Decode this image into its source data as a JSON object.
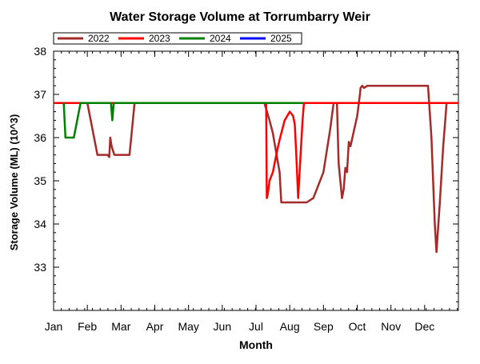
{
  "chart_data": {
    "type": "line",
    "title": "Water Storage Volume at Torrumbarry Weir",
    "xlabel": "Month",
    "ylabel": "Storage Volume (ML) (10^3)",
    "months": [
      "Jan",
      "Feb",
      "Mar",
      "Apr",
      "May",
      "Jun",
      "Jul",
      "Aug",
      "Sep",
      "Oct",
      "Nov",
      "Dec"
    ],
    "xlim": [
      0,
      12
    ],
    "ylim": [
      32,
      38
    ],
    "yticks": [
      33,
      34,
      35,
      36,
      37,
      38
    ],
    "grid": false,
    "legend_position": "top-left",
    "series": [
      {
        "name": "2022",
        "color": "#a52a2a",
        "points": [
          [
            0,
            36.8
          ],
          [
            1.0,
            36.8
          ],
          [
            1.1,
            36.4
          ],
          [
            1.3,
            35.6
          ],
          [
            1.6,
            35.6
          ],
          [
            1.65,
            35.55
          ],
          [
            1.68,
            36.0
          ],
          [
            1.72,
            35.8
          ],
          [
            1.8,
            35.6
          ],
          [
            2.25,
            35.6
          ],
          [
            2.4,
            36.8
          ],
          [
            6.25,
            36.8
          ],
          [
            6.4,
            36.4
          ],
          [
            6.5,
            36.1
          ],
          [
            6.7,
            35.2
          ],
          [
            6.75,
            34.5
          ],
          [
            7.5,
            34.5
          ],
          [
            7.7,
            34.6
          ],
          [
            8.0,
            35.2
          ],
          [
            8.2,
            36.2
          ],
          [
            8.3,
            36.8
          ],
          [
            8.4,
            36.8
          ],
          [
            8.45,
            35.4
          ],
          [
            8.55,
            34.6
          ],
          [
            8.6,
            34.8
          ],
          [
            8.65,
            35.3
          ],
          [
            8.7,
            35.2
          ],
          [
            8.75,
            35.9
          ],
          [
            8.8,
            35.8
          ],
          [
            9.0,
            36.5
          ],
          [
            9.08,
            37.0
          ],
          [
            9.1,
            37.15
          ],
          [
            9.15,
            37.2
          ],
          [
            9.2,
            37.15
          ],
          [
            9.3,
            37.2
          ],
          [
            11.0,
            37.2
          ],
          [
            11.1,
            37.2
          ],
          [
            11.2,
            36.0
          ],
          [
            11.3,
            34.0
          ],
          [
            11.35,
            33.35
          ],
          [
            11.45,
            34.5
          ],
          [
            11.55,
            35.8
          ],
          [
            11.62,
            36.5
          ],
          [
            11.65,
            36.8
          ],
          [
            12.0,
            36.8
          ]
        ]
      },
      {
        "name": "2023",
        "color": "#ff0000",
        "points": [
          [
            0,
            36.8
          ],
          [
            6.3,
            36.8
          ],
          [
            6.32,
            34.6
          ],
          [
            6.35,
            34.7
          ],
          [
            6.4,
            35.0
          ],
          [
            6.5,
            35.2
          ],
          [
            6.6,
            35.6
          ],
          [
            6.7,
            35.95
          ],
          [
            6.85,
            36.4
          ],
          [
            7.0,
            36.6
          ],
          [
            7.1,
            36.5
          ],
          [
            7.15,
            36.3
          ],
          [
            7.2,
            35.5
          ],
          [
            7.25,
            34.6
          ],
          [
            7.32,
            35.6
          ],
          [
            7.38,
            36.4
          ],
          [
            7.42,
            36.8
          ],
          [
            12.0,
            36.8
          ]
        ]
      },
      {
        "name": "2024",
        "color": "#008000",
        "points": [
          [
            0.3,
            36.8
          ],
          [
            0.35,
            36.0
          ],
          [
            0.6,
            36.0
          ],
          [
            0.8,
            36.8
          ],
          [
            1.7,
            36.8
          ],
          [
            1.74,
            36.4
          ],
          [
            1.78,
            36.8
          ],
          [
            7.4,
            36.8
          ]
        ]
      },
      {
        "name": "2025",
        "color": "#0000ff",
        "points": []
      }
    ]
  }
}
